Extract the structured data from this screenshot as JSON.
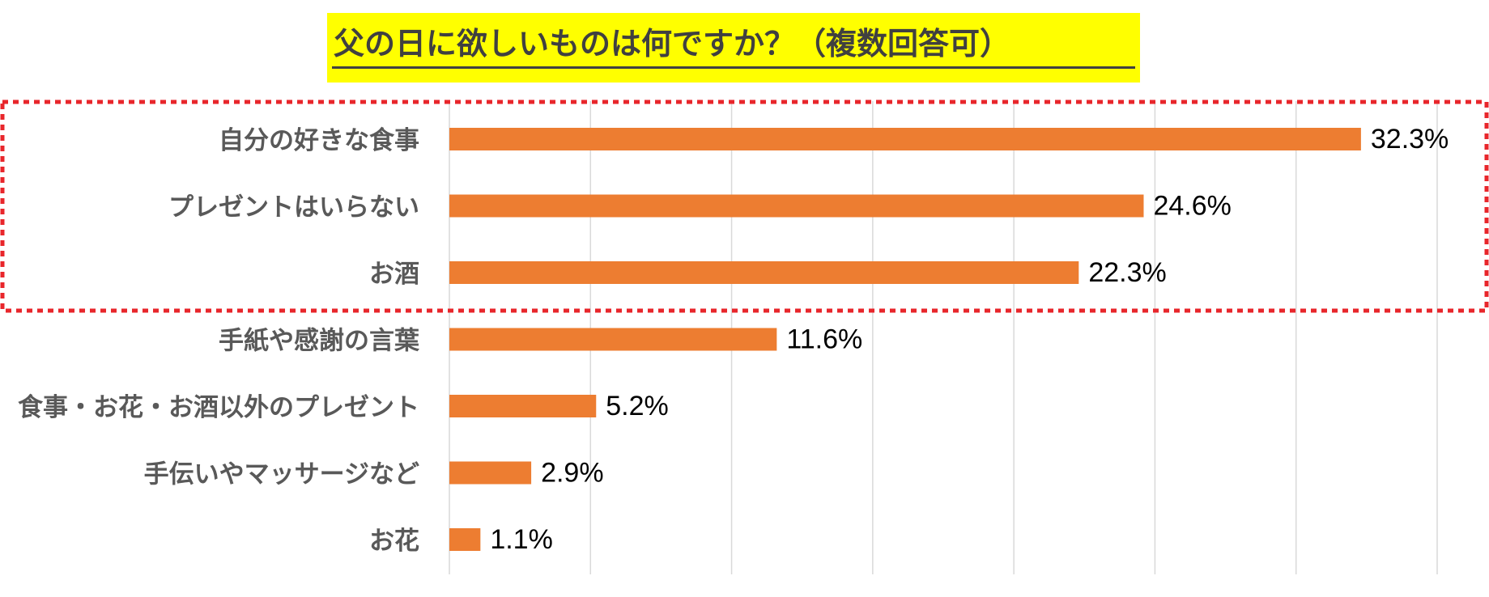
{
  "chart_data": {
    "type": "bar",
    "orientation": "horizontal",
    "title": "父の日に欲しいものは何ですか？（複数回答可）",
    "categories": [
      "自分の好きな食事",
      "プレゼントはいらない",
      "お酒",
      "手紙や感謝の言葉",
      "食事・お花・お酒以外のプレゼント",
      "手伝いやマッサージなど",
      "お花"
    ],
    "values": [
      32.3,
      24.6,
      22.3,
      11.6,
      5.2,
      2.9,
      1.1
    ],
    "value_labels": [
      "32.3%",
      "24.6%",
      "22.3%",
      "11.6%",
      "5.2%",
      "2.9%",
      "1.1%"
    ],
    "xlim": [
      0,
      35
    ],
    "grid": true,
    "legend": "none",
    "highlighted_categories": [
      "自分の好きな食事",
      "プレゼントはいらない",
      "お酒"
    ]
  },
  "colors": {
    "bar": "#ed7d31",
    "title_background": "#ffff00",
    "highlight_border": "#e8262b",
    "gridline": "#d9d9d9",
    "category_text": "#595959",
    "value_text": "#000000"
  }
}
